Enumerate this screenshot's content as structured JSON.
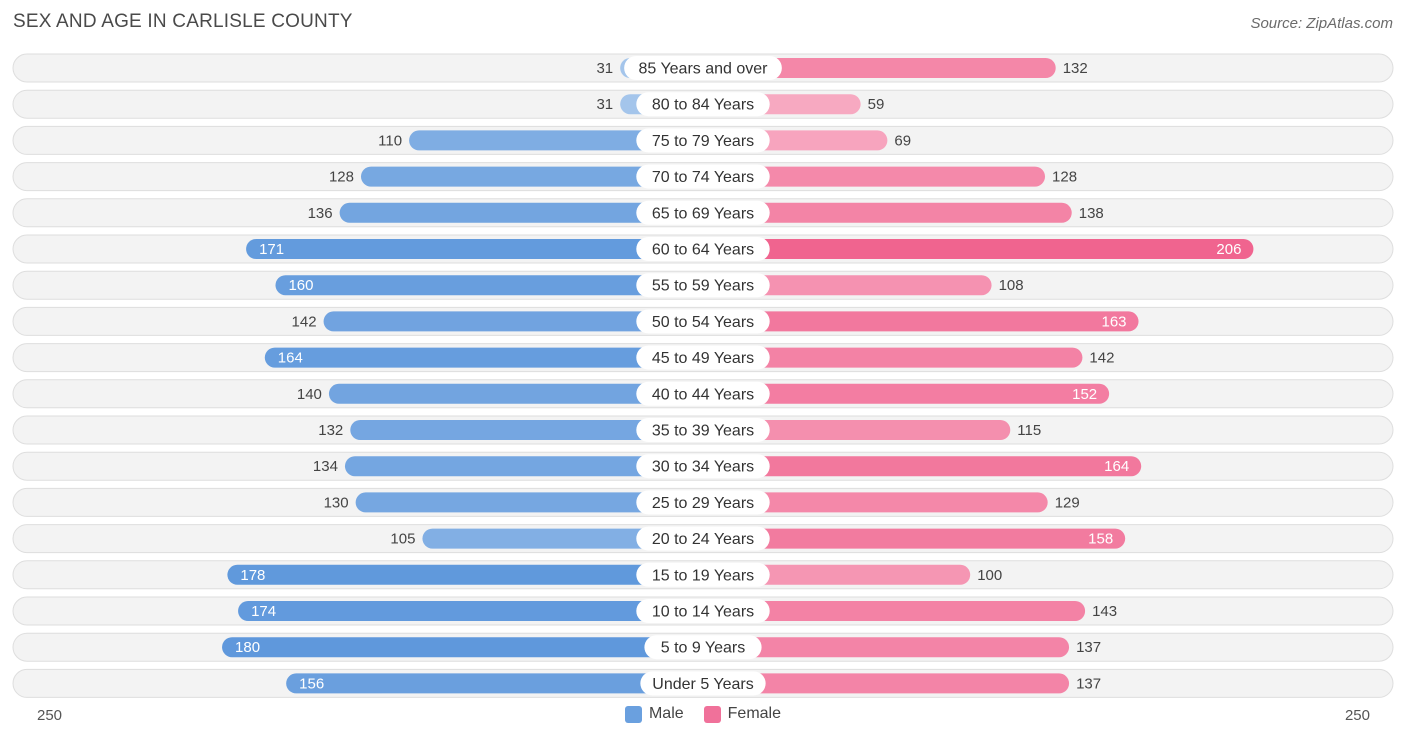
{
  "title": "SEX AND AGE IN CARLISLE COUNTY",
  "source": "Source: ZipAtlas.com",
  "colors": {
    "male_light": "#a9c8ec",
    "male_dark": "#5f98dc",
    "female_light": "#f8b2c8",
    "female_dark": "#f0648f",
    "row_bg": "#f3f3f3",
    "row_border": "#dedede"
  },
  "legend": {
    "male": "Male",
    "female": "Female"
  },
  "axis": {
    "left_label": "250",
    "right_label": "250"
  },
  "chart_data": {
    "type": "bar",
    "orientation": "horizontal-diverging",
    "title": "SEX AND AGE IN CARLISLE COUNTY",
    "xlim": [
      0,
      250
    ],
    "categories": [
      "85 Years and over",
      "80 to 84 Years",
      "75 to 79 Years",
      "70 to 74 Years",
      "65 to 69 Years",
      "60 to 64 Years",
      "55 to 59 Years",
      "50 to 54 Years",
      "45 to 49 Years",
      "40 to 44 Years",
      "35 to 39 Years",
      "30 to 34 Years",
      "25 to 29 Years",
      "20 to 24 Years",
      "15 to 19 Years",
      "10 to 14 Years",
      "5 to 9 Years",
      "Under 5 Years"
    ],
    "series": [
      {
        "name": "Male",
        "values": [
          31,
          31,
          110,
          128,
          136,
          171,
          160,
          142,
          164,
          140,
          132,
          134,
          130,
          105,
          178,
          174,
          180,
          156
        ]
      },
      {
        "name": "Female",
        "values": [
          132,
          59,
          69,
          128,
          138,
          206,
          108,
          163,
          142,
          152,
          115,
          164,
          129,
          158,
          100,
          143,
          137,
          137
        ]
      }
    ],
    "legend_position": "bottom-center"
  }
}
